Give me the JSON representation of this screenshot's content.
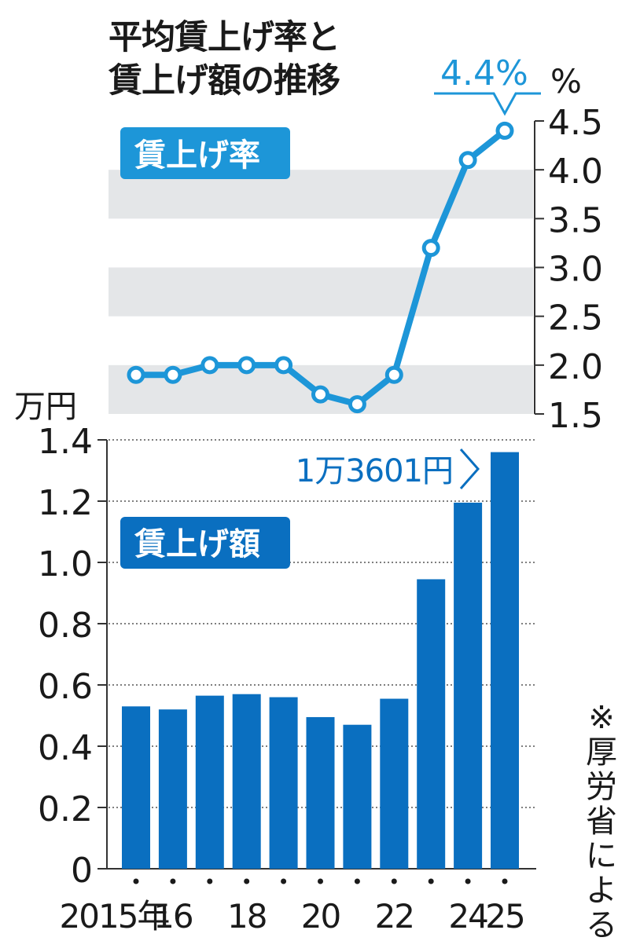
{
  "title_lines": [
    "平均賃上げ率と",
    "賃上げ額の推移"
  ],
  "source_note": "※厚労省による",
  "colors": {
    "line": "#1d96d8",
    "bar": "#0a6fc0",
    "band": "#e4e6e8",
    "text": "#1a1a1a",
    "axis": "#333333"
  },
  "chart_data": [
    {
      "type": "line",
      "label": "賃上げ率",
      "unit": "%",
      "ylim": [
        1.5,
        4.5
      ],
      "y_ticks": [
        "1.5",
        "2.0",
        "2.5",
        "3.0",
        "3.5",
        "4.0",
        "4.5"
      ],
      "x": [
        2015,
        2016,
        2017,
        2018,
        2019,
        2020,
        2021,
        2022,
        2023,
        2024,
        2025
      ],
      "values": [
        1.9,
        1.9,
        2.0,
        2.0,
        2.0,
        1.7,
        1.6,
        1.9,
        3.2,
        4.1,
        4.4
      ],
      "annotation": "4.4%",
      "grid": "alternating bands"
    },
    {
      "type": "bar",
      "label": "賃上げ額",
      "unit": "万円",
      "ylim": [
        0,
        1.4
      ],
      "y_ticks": [
        "0",
        "0.2",
        "0.4",
        "0.6",
        "0.8",
        "1.0",
        "1.2",
        "1.4"
      ],
      "x": [
        2015,
        2016,
        2017,
        2018,
        2019,
        2020,
        2021,
        2022,
        2023,
        2024,
        2025
      ],
      "values": [
        0.53,
        0.52,
        0.565,
        0.57,
        0.56,
        0.495,
        0.47,
        0.555,
        0.945,
        1.195,
        1.36
      ],
      "annotation": "1万3601円",
      "grid": "dotted horizontal"
    }
  ],
  "x_tick_labels": [
    "2015年",
    "16",
    "18",
    "20",
    "22",
    "24",
    "25"
  ],
  "x_tick_years": [
    2015,
    2016,
    2018,
    2020,
    2022,
    2024,
    2025
  ]
}
